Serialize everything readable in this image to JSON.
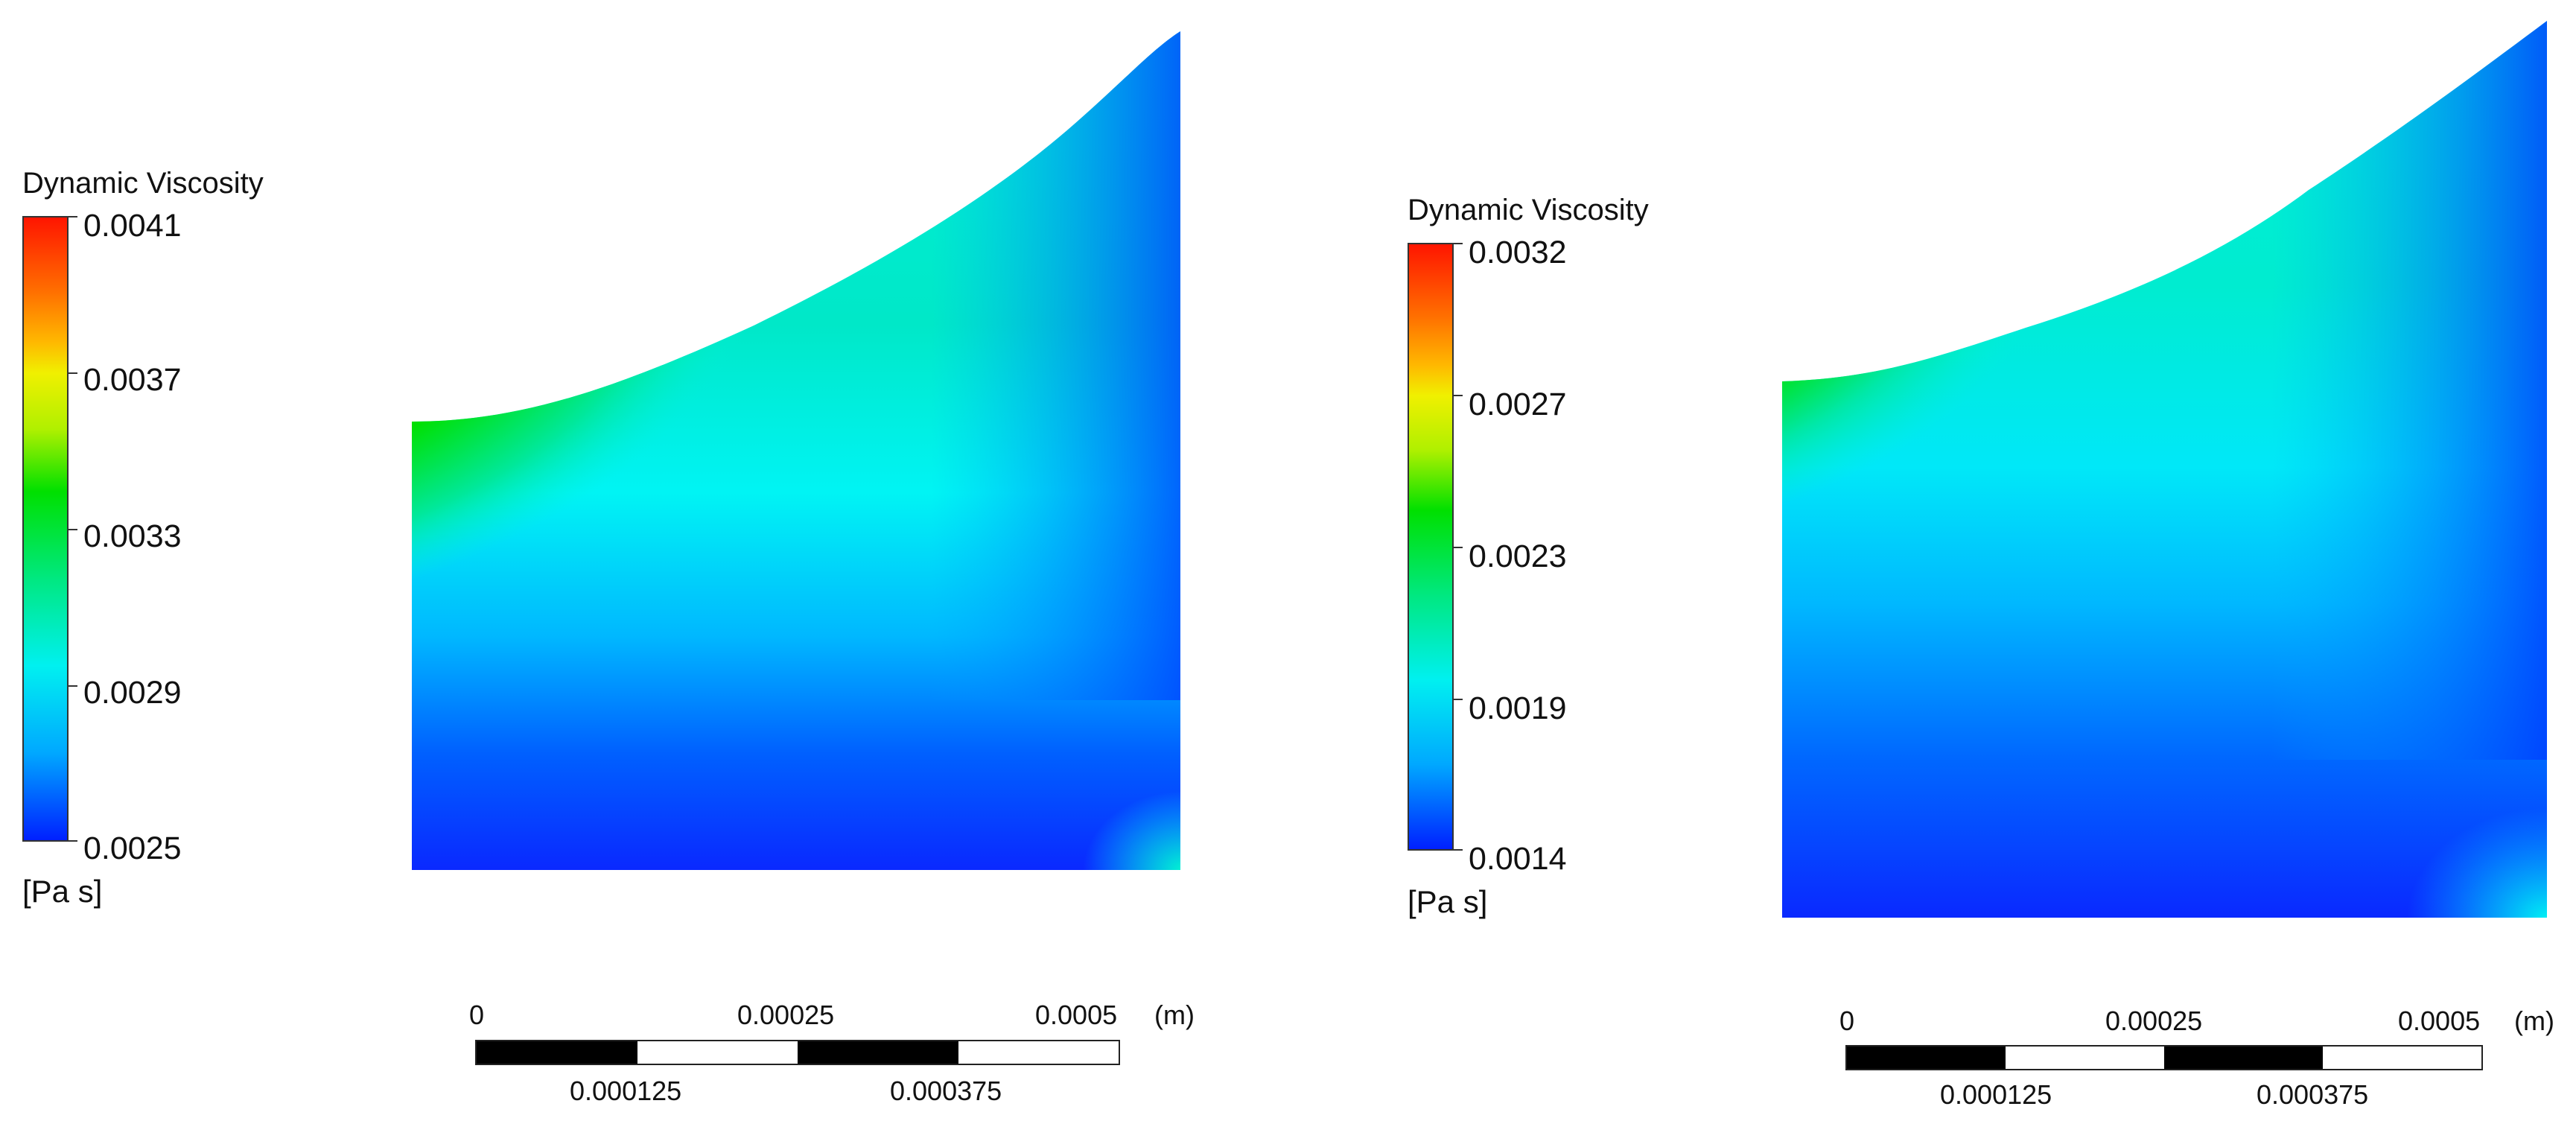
{
  "panels": [
    {
      "title": "Dynamic Viscosity",
      "ticks": [
        "0.0041",
        "0.0037",
        "0.0033",
        "0.0029",
        "0.0025"
      ],
      "units": "[Pa s]",
      "scale_top": [
        "0",
        "0.00025",
        "0.0005"
      ],
      "scale_bottom": [
        "0.000125",
        "0.000375"
      ],
      "scale_unit": "(m)"
    },
    {
      "title": "Dynamic Viscosity",
      "ticks": [
        "0.0032",
        "0.0027",
        "0.0023",
        "0.0019",
        "0.0014"
      ],
      "units": "[Pa s]",
      "scale_top": [
        "0",
        "0.00025",
        "0.0005"
      ],
      "scale_bottom": [
        "0.000125",
        "0.000375"
      ],
      "scale_unit": "(m)"
    }
  ],
  "colors": {
    "red": "#ff1a00",
    "orange": "#ff9a00",
    "yellow": "#f0f000",
    "green": "#00e000",
    "cyan": "#00f0f0",
    "blue": "#0a28ff"
  }
}
